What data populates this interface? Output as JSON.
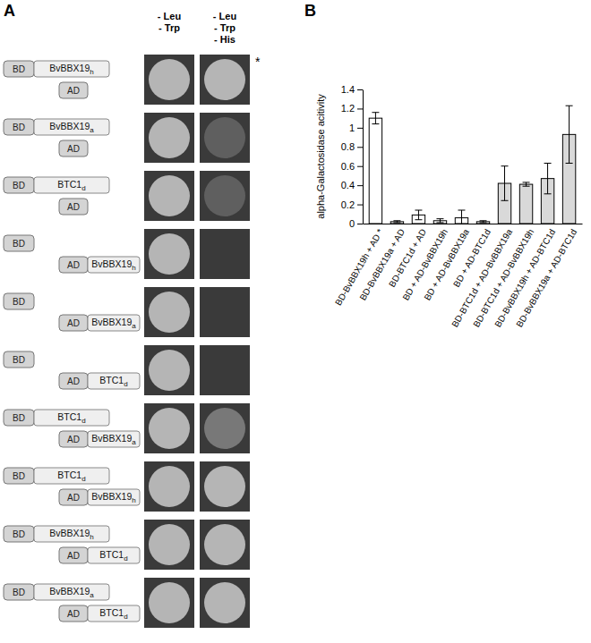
{
  "panel_a": {
    "label": "A",
    "bd_tag": "BD",
    "ad_tag": "AD",
    "columns": [
      [
        "- Leu",
        "- Trp"
      ],
      [
        "- Leu",
        "- Trp",
        "- His"
      ]
    ],
    "rows": [
      {
        "bd": {
          "text": "BvBBX19",
          "sub": "h"
        },
        "ad": null,
        "growth": [
          1,
          1
        ],
        "note": "*"
      },
      {
        "bd": {
          "text": "BvBBX19",
          "sub": "a"
        },
        "ad": null,
        "growth": [
          1,
          0.3
        ]
      },
      {
        "bd": {
          "text": "BTC1",
          "sub": "d"
        },
        "ad": null,
        "growth": [
          1,
          0.3
        ]
      },
      {
        "bd": null,
        "ad": {
          "text": "BvBBX19",
          "sub": "h"
        },
        "growth": [
          1,
          0
        ]
      },
      {
        "bd": null,
        "ad": {
          "text": "BvBBX19",
          "sub": "a"
        },
        "growth": [
          1,
          0
        ]
      },
      {
        "bd": null,
        "ad": {
          "text": "BTC1",
          "sub": "d"
        },
        "growth": [
          1,
          0
        ]
      },
      {
        "bd": {
          "text": "BTC1",
          "sub": "d"
        },
        "ad": {
          "text": "BvBBX19",
          "sub": "a"
        },
        "growth": [
          1,
          0.5
        ]
      },
      {
        "bd": {
          "text": "BTC1",
          "sub": "d"
        },
        "ad": {
          "text": "BvBBX19",
          "sub": "h"
        },
        "growth": [
          1,
          1
        ]
      },
      {
        "bd": {
          "text": "BvBBX19",
          "sub": "h"
        },
        "ad": {
          "text": "BTC1",
          "sub": "d"
        },
        "growth": [
          1,
          1
        ]
      },
      {
        "bd": {
          "text": "BvBBX19",
          "sub": "a"
        },
        "ad": {
          "text": "BTC1",
          "sub": "d"
        },
        "growth": [
          1,
          1
        ]
      }
    ]
  },
  "chart_data": {
    "type": "bar",
    "panel_label": "B",
    "y_label": "alpha-Galactosidase acitivity",
    "categories": [
      "BD-BvBBX19h + AD *",
      "BD-BvBBX19a + AD",
      "BD-BTC1d + AD",
      "BD + AD-BvBBX19h",
      "BD + AD-BvBBX19a",
      "BD + AD-BTC1d",
      "BD-BTC1d + AD-BvBBX19a",
      "BD-BTC1d + AD-BvBBX19h",
      "BD-BvBBX19h + AD-BTC1d",
      "BD-BvBBX19a + AD-BTC1d"
    ],
    "values": [
      1.1,
      0.02,
      0.09,
      0.03,
      0.06,
      0.02,
      0.42,
      0.41,
      0.47,
      0.93
    ],
    "errors": [
      0.06,
      0.01,
      0.05,
      0.02,
      0.08,
      0.01,
      0.18,
      0.02,
      0.16,
      0.3
    ],
    "colors": [
      "#ffffff",
      "#ffffff",
      "#ffffff",
      "#ffffff",
      "#ffffff",
      "#ffffff",
      "#d9d9d9",
      "#d9d9d9",
      "#d9d9d9",
      "#d9d9d9"
    ],
    "ylim": [
      0,
      1.4
    ],
    "yticks": [
      0,
      0.2,
      0.4,
      0.6,
      0.8,
      1,
      1.2,
      1.4
    ],
    "grid": false
  }
}
